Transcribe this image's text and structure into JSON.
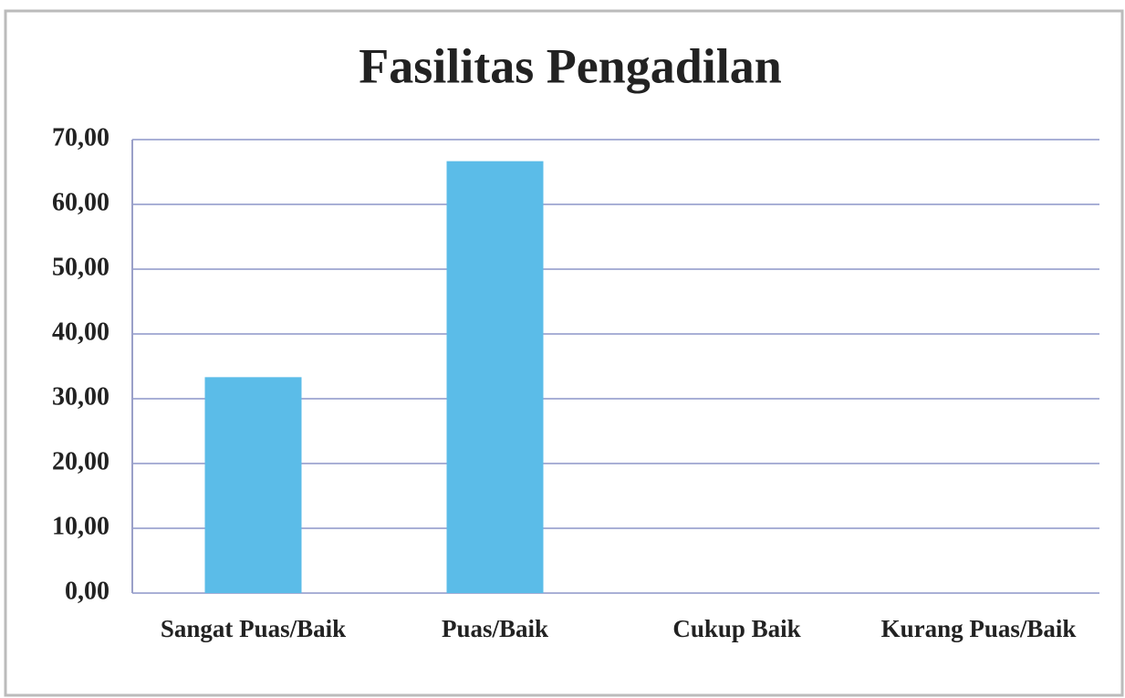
{
  "chart_data": {
    "type": "bar",
    "title": "Fasilitas Pengadilan",
    "categories": [
      "Sangat Puas/Baik",
      "Puas/Baik",
      "Cukup Baik",
      "Kurang Puas/Baik"
    ],
    "values": [
      33.33,
      66.67,
      0,
      0
    ],
    "color": "#5bbce8",
    "ylim": [
      0,
      70
    ],
    "yticks": [
      {
        "value": 0,
        "label": "0,00"
      },
      {
        "value": 10,
        "label": "10,00"
      },
      {
        "value": 20,
        "label": "20,00"
      },
      {
        "value": 30,
        "label": "30,00"
      },
      {
        "value": 40,
        "label": "40,00"
      },
      {
        "value": 50,
        "label": "50,00"
      },
      {
        "value": 60,
        "label": "60,00"
      },
      {
        "value": 70,
        "label": "70,00"
      }
    ],
    "grid": true
  }
}
